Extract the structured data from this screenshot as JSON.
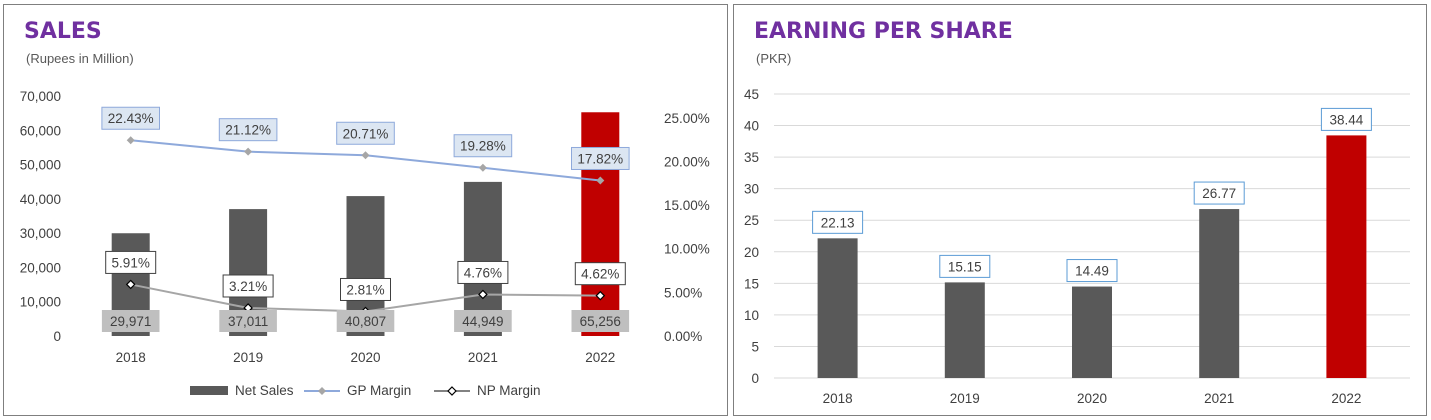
{
  "colors": {
    "bar": "#595959",
    "highlight": "#c00000",
    "gp_line": "#8ea9db",
    "np_line": "#a6a6a6",
    "title": "#7030a0"
  },
  "chart_data": [
    {
      "type": "bar",
      "title": "SALES",
      "subtitle": "(Rupees in Million)",
      "categories": [
        "2018",
        "2019",
        "2020",
        "2021",
        "2022"
      ],
      "ylim": [
        0,
        70000
      ],
      "yticks": [
        "0",
        "10,000",
        "20,000",
        "30,000",
        "40,000",
        "50,000",
        "60,000",
        "70,000"
      ],
      "y2lim": [
        0,
        27.5
      ],
      "y2ticks": [
        "0.00%",
        "5.00%",
        "10.00%",
        "15.00%",
        "20.00%",
        "25.00%"
      ],
      "grid": true,
      "legend_position": "bottom",
      "highlight_category": "2022",
      "series": [
        {
          "name": "Net Sales",
          "type": "bar",
          "values": [
            29971,
            37011,
            40807,
            44949,
            65256
          ],
          "labels": [
            "29,971",
            "37,011",
            "40,807",
            "44,949",
            "65,256"
          ]
        },
        {
          "name": "GP Margin",
          "type": "line",
          "axis": "secondary",
          "values": [
            22.43,
            21.12,
            20.71,
            19.28,
            17.82
          ],
          "labels": [
            "22.43%",
            "21.12%",
            "20.71%",
            "19.28%",
            "17.82%"
          ]
        },
        {
          "name": "NP Margin",
          "type": "line",
          "axis": "secondary",
          "values": [
            5.91,
            3.21,
            2.81,
            4.76,
            4.62
          ],
          "labels": [
            "5.91%",
            "3.21%",
            "2.81%",
            "4.76%",
            "4.62%"
          ]
        }
      ]
    },
    {
      "type": "bar",
      "title": "EARNING PER SHARE",
      "subtitle": "(PKR)",
      "categories": [
        "2018",
        "2019",
        "2020",
        "2021",
        "2022"
      ],
      "ylim": [
        0,
        45
      ],
      "yticks": [
        "0",
        "5",
        "10",
        "15",
        "20",
        "25",
        "30",
        "35",
        "40",
        "45"
      ],
      "grid": true,
      "highlight_category": "2022",
      "series": [
        {
          "name": "EPS",
          "values": [
            22.13,
            15.15,
            14.49,
            26.77,
            38.44
          ],
          "labels": [
            "22.13",
            "15.15",
            "14.49",
            "26.77",
            "38.44"
          ]
        }
      ]
    }
  ]
}
